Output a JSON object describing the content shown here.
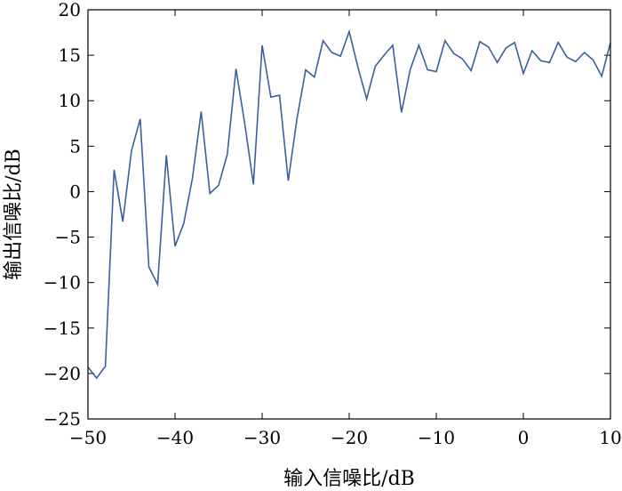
{
  "chart_data": {
    "type": "line",
    "title": "",
    "xlabel": "输入信噪比/dB",
    "ylabel": "输出信噪比/dB",
    "xlim": [
      -50,
      10
    ],
    "ylim": [
      -25,
      20
    ],
    "x_ticks": [
      -50,
      -40,
      -30,
      -20,
      -10,
      0,
      10
    ],
    "y_ticks": [
      -25,
      -20,
      -15,
      -10,
      -5,
      0,
      5,
      10,
      15,
      20
    ],
    "x_tick_labels": [
      "−50",
      "−40",
      "−30",
      "−20",
      "−10",
      "0",
      "10"
    ],
    "y_tick_labels": [
      "−25",
      "−20",
      "−15",
      "−10",
      "−5",
      "0",
      "5",
      "10",
      "15",
      "20"
    ],
    "grid": false,
    "line_color": "#3a5f9e",
    "series": [
      {
        "x": [
          -50,
          -49,
          -48,
          -47,
          -46,
          -45,
          -44,
          -43,
          -42,
          -41,
          -40,
          -39,
          -38,
          -37,
          -36,
          -35,
          -34,
          -33,
          -32,
          -31,
          -30,
          -29,
          -28,
          -27,
          -26,
          -25,
          -24,
          -23,
          -22,
          -21,
          -20,
          -19,
          -18,
          -17,
          -16,
          -15,
          -14,
          -13,
          -12,
          -11,
          -10,
          -9,
          -8,
          -7,
          -6,
          -5,
          -4,
          -3,
          -2,
          -1,
          0,
          1,
          2,
          3,
          4,
          5,
          6,
          7,
          8,
          9,
          10
        ],
        "values": [
          -19.3,
          -20.5,
          -19.2,
          2.4,
          -3.3,
          4.5,
          8.0,
          -8.3,
          -10.2,
          4.0,
          -6.0,
          -3.5,
          1.5,
          8.8,
          -0.2,
          0.7,
          4.1,
          13.5,
          7.5,
          0.8,
          16.1,
          10.4,
          10.6,
          1.2,
          8.0,
          13.4,
          12.6,
          16.6,
          15.3,
          14.9,
          17.6,
          13.7,
          10.2,
          13.8,
          15.0,
          16.1,
          8.7,
          13.4,
          16.1,
          13.4,
          13.2,
          16.6,
          15.2,
          14.6,
          13.3,
          16.5,
          15.9,
          14.2,
          15.8,
          16.4,
          13.0,
          15.5,
          14.4,
          14.2,
          16.4,
          14.8,
          14.3,
          15.3,
          14.5,
          12.7,
          16.4
        ]
      }
    ]
  }
}
